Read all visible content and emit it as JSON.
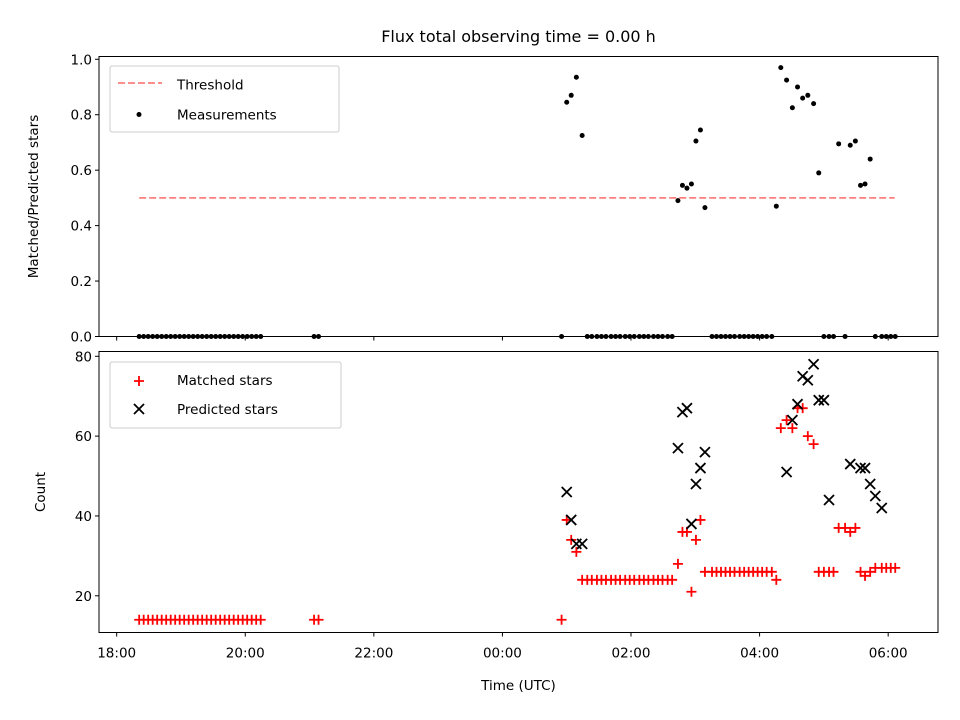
{
  "chart_data": [
    {
      "type": "scatter",
      "title": "Flux total observing time = 0.00 h",
      "ylabel": "Matched/Predicted stars",
      "xlabel": "",
      "x_unit": "hours since 18:00 UTC",
      "xlim": [
        17.725,
        30.775
      ],
      "ylim": [
        0,
        1.01
      ],
      "yticks": [
        0.0,
        0.2,
        0.4,
        0.6,
        0.8,
        1.0
      ],
      "ytick_labels": [
        "0.0",
        "0.2",
        "0.4",
        "0.6",
        "0.8",
        "1.0"
      ],
      "legend": {
        "position": "upper-left",
        "threshold_label": "Threshold",
        "measurements_label": "Measurements"
      },
      "threshold": {
        "value": 0.5,
        "x_range": [
          18.35,
          30.1
        ],
        "color": "#ff7f7f"
      },
      "measurements": {
        "color": "#000000",
        "x": [
          18.35,
          18.42,
          18.49,
          18.56,
          18.63,
          18.7,
          18.77,
          18.84,
          18.91,
          18.98,
          19.05,
          19.12,
          19.19,
          19.26,
          19.33,
          19.4,
          19.47,
          19.54,
          19.61,
          19.68,
          19.75,
          19.82,
          19.89,
          19.96,
          20.03,
          20.1,
          20.17,
          20.24,
          21.07,
          21.14,
          24.92,
          25.0,
          25.07,
          25.15,
          25.24,
          25.32,
          25.39,
          25.47,
          25.54,
          25.61,
          25.69,
          25.76,
          25.83,
          25.91,
          25.98,
          26.05,
          26.13,
          26.2,
          26.27,
          26.35,
          26.42,
          26.49,
          26.57,
          26.64,
          26.73,
          26.8,
          26.87,
          26.94,
          27.01,
          27.08,
          27.15,
          27.26,
          27.33,
          27.4,
          27.47,
          27.54,
          27.61,
          27.69,
          27.76,
          27.83,
          27.9,
          27.97,
          28.04,
          28.11,
          28.19,
          28.26,
          28.33,
          28.42,
          28.51,
          28.59,
          28.67,
          28.75,
          28.84,
          28.92,
          29.0,
          29.08,
          29.15,
          29.23,
          29.33,
          29.41,
          29.49,
          29.57,
          29.64,
          29.72,
          29.8,
          29.9,
          29.97,
          30.04,
          30.11
        ],
        "y": [
          0,
          0,
          0,
          0,
          0,
          0,
          0,
          0,
          0,
          0,
          0,
          0,
          0,
          0,
          0,
          0,
          0,
          0,
          0,
          0,
          0,
          0,
          0,
          0,
          0,
          0,
          0,
          0,
          0,
          0,
          0,
          0.845,
          0.87,
          0.935,
          0.725,
          0,
          0,
          0,
          0,
          0,
          0,
          0,
          0,
          0,
          0,
          0,
          0,
          0,
          0,
          0,
          0,
          0,
          0,
          0,
          0.49,
          0.545,
          0.535,
          0.55,
          0.705,
          0.745,
          0.465,
          0,
          0,
          0,
          0,
          0,
          0,
          0,
          0,
          0,
          0,
          0,
          0,
          0,
          0,
          0.47,
          0.97,
          0.925,
          0.825,
          0.9,
          0.86,
          0.87,
          0.84,
          0.59,
          0,
          0,
          0,
          0.695,
          0,
          0.69,
          0.705,
          0.545,
          0.55,
          0.64,
          0,
          0,
          0,
          0,
          0
        ]
      }
    },
    {
      "type": "scatter",
      "title": "",
      "ylabel": "Count",
      "xlabel": "Time (UTC)",
      "x_unit": "hours since 18:00 UTC",
      "xlim": [
        17.725,
        30.775
      ],
      "ylim": [
        10.8,
        81.2
      ],
      "yticks": [
        20,
        40,
        60,
        80
      ],
      "ytick_labels": [
        "20",
        "40",
        "60",
        "80"
      ],
      "xticks": [
        18,
        20,
        22,
        24,
        26,
        28,
        30
      ],
      "xtick_labels": [
        "18:00",
        "20:00",
        "22:00",
        "00:00",
        "02:00",
        "04:00",
        "06:00"
      ],
      "legend": {
        "position": "upper-left",
        "matched_label": "Matched stars",
        "predicted_label": "Predicted stars"
      },
      "matched": {
        "color": "#ff0000",
        "x": [
          18.35,
          18.42,
          18.49,
          18.56,
          18.63,
          18.7,
          18.77,
          18.84,
          18.91,
          18.98,
          19.05,
          19.12,
          19.19,
          19.26,
          19.33,
          19.4,
          19.47,
          19.54,
          19.61,
          19.68,
          19.75,
          19.82,
          19.89,
          19.96,
          20.03,
          20.1,
          20.17,
          20.24,
          21.07,
          21.14,
          24.92,
          25.0,
          25.07,
          25.15,
          25.24,
          25.32,
          25.39,
          25.47,
          25.54,
          25.61,
          25.69,
          25.76,
          25.83,
          25.91,
          25.98,
          26.05,
          26.13,
          26.2,
          26.27,
          26.35,
          26.42,
          26.49,
          26.57,
          26.64,
          26.73,
          26.8,
          26.87,
          26.94,
          27.01,
          27.08,
          27.15,
          27.26,
          27.33,
          27.4,
          27.47,
          27.54,
          27.61,
          27.69,
          27.76,
          27.83,
          27.9,
          27.97,
          28.04,
          28.11,
          28.19,
          28.26,
          28.33,
          28.42,
          28.51,
          28.59,
          28.67,
          28.75,
          28.84,
          28.92,
          29.0,
          29.08,
          29.15,
          29.23,
          29.33,
          29.41,
          29.49,
          29.57,
          29.64,
          29.72,
          29.8,
          29.9,
          29.97,
          30.04,
          30.11
        ],
        "y": [
          14,
          14,
          14,
          14,
          14,
          14,
          14,
          14,
          14,
          14,
          14,
          14,
          14,
          14,
          14,
          14,
          14,
          14,
          14,
          14,
          14,
          14,
          14,
          14,
          14,
          14,
          14,
          14,
          14,
          14,
          14,
          39,
          34,
          31,
          24,
          24,
          24,
          24,
          24,
          24,
          24,
          24,
          24,
          24,
          24,
          24,
          24,
          24,
          24,
          24,
          24,
          24,
          24,
          24,
          28,
          36,
          36,
          21,
          34,
          39,
          26,
          26,
          26,
          26,
          26,
          26,
          26,
          26,
          26,
          26,
          26,
          26,
          26,
          26,
          26,
          24,
          62,
          64,
          62,
          67,
          67,
          60,
          58,
          26,
          26,
          26,
          26,
          37,
          37,
          36,
          37,
          26,
          25,
          26,
          27,
          27,
          27,
          27,
          27
        ]
      },
      "predicted": {
        "color": "#000000",
        "x": [
          25.0,
          25.07,
          25.15,
          25.24,
          26.73,
          26.8,
          26.87,
          26.94,
          27.01,
          27.08,
          27.15,
          28.42,
          28.51,
          28.59,
          28.67,
          28.75,
          28.84,
          28.92,
          29.0,
          29.08,
          29.41,
          29.57,
          29.64,
          29.72,
          29.8,
          29.9
        ],
        "y": [
          46,
          39,
          33,
          33,
          57,
          66,
          67,
          38,
          48,
          52,
          56,
          51,
          64,
          68,
          75,
          74,
          78,
          69,
          69,
          44,
          53,
          52,
          52,
          48,
          45,
          42
        ]
      }
    }
  ]
}
